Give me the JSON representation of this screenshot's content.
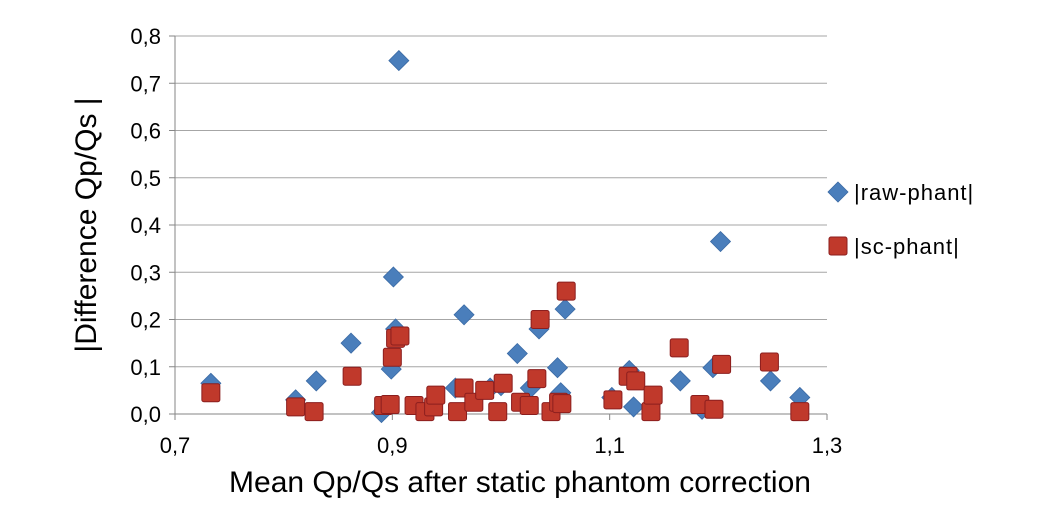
{
  "chart_data": {
    "type": "scatter",
    "title": "",
    "xlabel": "Mean Qp/Qs after static phantom correction",
    "ylabel": "|Difference Qp/Qs |",
    "xlim": [
      0.7,
      1.3
    ],
    "ylim": [
      0.0,
      0.8
    ],
    "x_ticks": [
      "0,7",
      "0,9",
      "1,1",
      "1,3"
    ],
    "y_ticks": [
      "0,0",
      "0,1",
      "0,2",
      "0,3",
      "0,4",
      "0,5",
      "0,6",
      "0,7",
      "0,8"
    ],
    "grid": "horizontal",
    "legend_position": "right",
    "series": [
      {
        "name": "|raw-phant|",
        "marker": "diamond",
        "color": "#4a7ebb",
        "points": [
          [
            0.733,
            0.065
          ],
          [
            0.811,
            0.03
          ],
          [
            0.83,
            0.07
          ],
          [
            0.862,
            0.15
          ],
          [
            0.89,
            0.003
          ],
          [
            0.899,
            0.095
          ],
          [
            0.901,
            0.29
          ],
          [
            0.903,
            0.18
          ],
          [
            0.906,
            0.748
          ],
          [
            0.958,
            0.055
          ],
          [
            0.966,
            0.21
          ],
          [
            0.99,
            0.055
          ],
          [
            1.0,
            0.06
          ],
          [
            1.015,
            0.128
          ],
          [
            1.027,
            0.055
          ],
          [
            1.035,
            0.18
          ],
          [
            1.052,
            0.098
          ],
          [
            1.055,
            0.045
          ],
          [
            1.059,
            0.222
          ],
          [
            1.102,
            0.035
          ],
          [
            1.118,
            0.092
          ],
          [
            1.122,
            0.015
          ],
          [
            1.165,
            0.07
          ],
          [
            1.185,
            0.01
          ],
          [
            1.195,
            0.098
          ],
          [
            1.202,
            0.365
          ],
          [
            1.248,
            0.07
          ],
          [
            1.275,
            0.035
          ]
        ]
      },
      {
        "name": "|sc-phant|",
        "marker": "square",
        "color": "#c0392b",
        "points": [
          [
            0.733,
            0.045
          ],
          [
            0.811,
            0.015
          ],
          [
            0.828,
            0.005
          ],
          [
            0.863,
            0.08
          ],
          [
            0.892,
            0.018
          ],
          [
            0.898,
            0.02
          ],
          [
            0.9,
            0.12
          ],
          [
            0.903,
            0.16
          ],
          [
            0.907,
            0.165
          ],
          [
            0.92,
            0.018
          ],
          [
            0.93,
            0.005
          ],
          [
            0.938,
            0.015
          ],
          [
            0.94,
            0.04
          ],
          [
            0.96,
            0.005
          ],
          [
            0.966,
            0.055
          ],
          [
            0.975,
            0.025
          ],
          [
            0.985,
            0.05
          ],
          [
            0.997,
            0.005
          ],
          [
            1.002,
            0.065
          ],
          [
            1.018,
            0.025
          ],
          [
            1.026,
            0.018
          ],
          [
            1.033,
            0.075
          ],
          [
            1.036,
            0.2
          ],
          [
            1.046,
            0.005
          ],
          [
            1.053,
            0.025
          ],
          [
            1.056,
            0.022
          ],
          [
            1.06,
            0.26
          ],
          [
            1.103,
            0.03
          ],
          [
            1.117,
            0.08
          ],
          [
            1.124,
            0.07
          ],
          [
            1.138,
            0.005
          ],
          [
            1.14,
            0.04
          ],
          [
            1.164,
            0.14
          ],
          [
            1.183,
            0.02
          ],
          [
            1.196,
            0.01
          ],
          [
            1.203,
            0.105
          ],
          [
            1.247,
            0.11
          ],
          [
            1.275,
            0.005
          ]
        ]
      }
    ]
  }
}
